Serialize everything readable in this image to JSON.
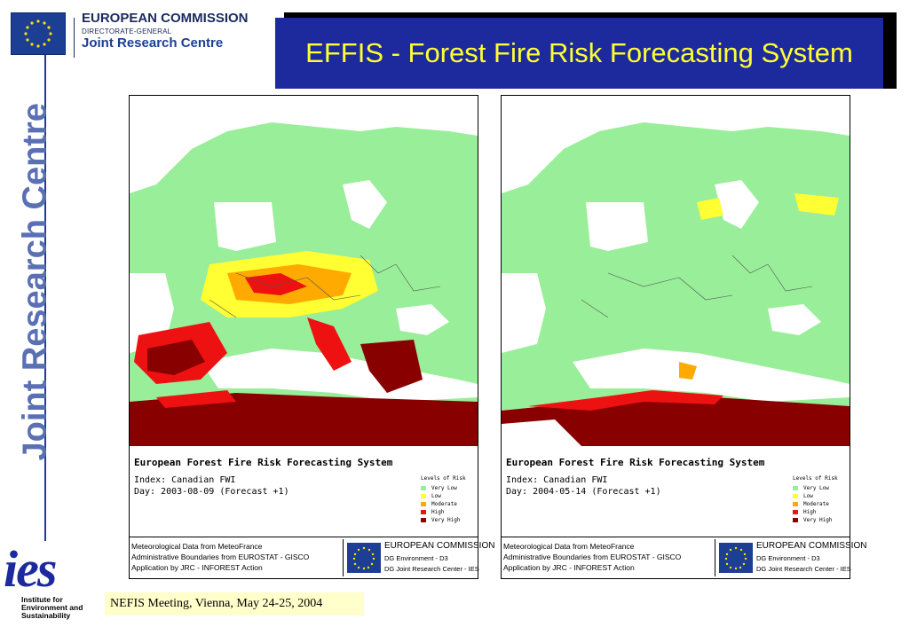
{
  "header": {
    "org_name": "EUROPEAN COMMISSION",
    "org_sub": "DIRECTORATE-GENERAL",
    "org_unit": "Joint Research Centre",
    "side_brand": "Joint Research Centre"
  },
  "title": "EFFIS - Forest Fire Risk Forecasting System",
  "colors": {
    "title_bg": "#1c2a9e",
    "title_text": "#ffff33",
    "very_low": "#99ee99",
    "low": "#ffff33",
    "moderate": "#ffaa00",
    "high": "#ee1111",
    "very_high": "#880000"
  },
  "maps": [
    {
      "title": "European Forest Fire Risk Forecasting System",
      "index": "Index: Canadian FWI",
      "day": "Day: 2003-08-09 (Forecast +1)",
      "legend_title": "Levels of Risk",
      "legend": [
        "Very Low",
        "Low",
        "Moderate",
        "High",
        "Very High"
      ],
      "footer_lines": [
        "Meteorological Data from MeteoFrance",
        "Administrative Boundaries from EUROSTAT - GISCO",
        "Application by JRC  - INFOREST Action"
      ],
      "footer_logo": {
        "ec": "EUROPEAN COMMISSION",
        "line2": "DG Environment - D3",
        "line3": "DG Joint Research Center - IES"
      }
    },
    {
      "title": "European Forest Fire Risk Forecasting System",
      "index": "Index: Canadian FWI",
      "day": "Day: 2004-05-14 (Forecast +1)",
      "legend_title": "Levels of Risk",
      "legend": [
        "Very Low",
        "Low",
        "Moderate",
        "High",
        "Very High"
      ],
      "footer_lines": [
        "Meteorological Data from MeteoFrance",
        "Administrative Boundaries from EUROSTAT - GISCO",
        "Application by JRC  - INFOREST Action"
      ],
      "footer_logo": {
        "ec": "EUROPEAN COMMISSION",
        "line2": "DG Environment - D3",
        "line3": "DG Joint Research Center - IES"
      }
    }
  ],
  "ies": {
    "word": "ies",
    "line1": "Institute for",
    "line2": "Environment and",
    "line3": "Sustainability"
  },
  "footer": {
    "meeting": "NEFIS Meeting, Vienna, May 24-25, 2004"
  }
}
